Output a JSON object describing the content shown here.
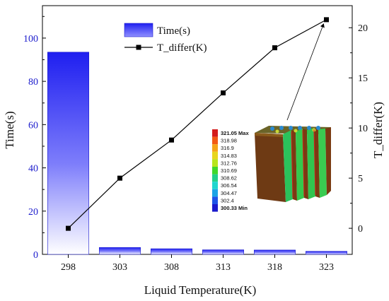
{
  "chart_data": {
    "type": "bar",
    "categories": [
      "298",
      "303",
      "308",
      "313",
      "318",
      "323"
    ],
    "series": [
      {
        "name": "Time(s)",
        "type": "bar",
        "axis": "left",
        "values": [
          93.5,
          3.2,
          2.6,
          2.1,
          2.0,
          1.4
        ]
      },
      {
        "name": "T_differ(K)",
        "type": "line",
        "axis": "right",
        "values": [
          0.0,
          5.0,
          8.8,
          13.5,
          18.0,
          20.8
        ]
      }
    ],
    "xlabel": "Liquid Temperature(K)",
    "ylabel_left": "Time(s)",
    "ylabel_right": "T_differ(K)",
    "ylim_left": [
      0,
      115
    ],
    "ylim_right": [
      -2.6,
      22.2
    ],
    "yticks_left": [
      "0",
      "20",
      "40",
      "60",
      "80",
      "100"
    ],
    "yticks_right": [
      "0",
      "5",
      "10",
      "15",
      "20"
    ],
    "legend_position": "top-center",
    "grid": false,
    "colors": {
      "bar_top": "#1f1ff0",
      "bar_bottom": "#ffffff",
      "left_axis": "#1a1acc",
      "line": "#000000"
    }
  },
  "inset": {
    "legend_values": [
      "321.05 Max",
      "318.98",
      "316.9",
      "314.83",
      "312.76",
      "310.69",
      "308.62",
      "306.54",
      "304.47",
      "302.4",
      "300.33 Min"
    ],
    "legend_colors": [
      "#d41c1c",
      "#f25a14",
      "#f5a317",
      "#e8d61c",
      "#b7e51d",
      "#3fd82b",
      "#22d08a",
      "#1fd6cf",
      "#1aa3e6",
      "#1e54e8",
      "#1a1acc"
    ],
    "arrow_target_category": "323"
  }
}
